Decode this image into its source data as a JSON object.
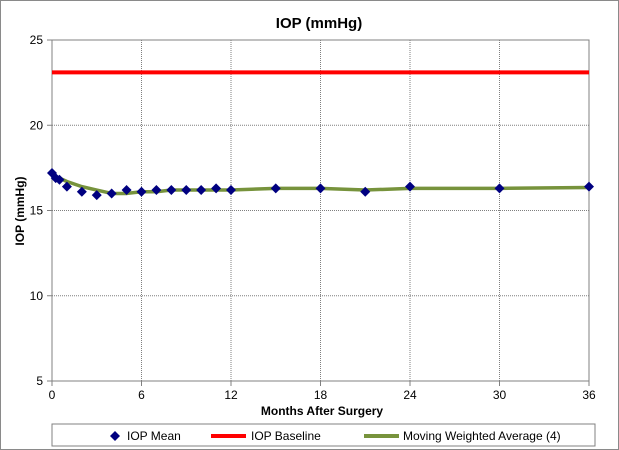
{
  "chart_data": {
    "type": "line",
    "title": "IOP (mmHg)",
    "xlabel": "Months After Surgery",
    "ylabel": "IOP (mmHg)",
    "xlim": [
      0,
      36
    ],
    "ylim": [
      5,
      25
    ],
    "x_ticks": [
      0,
      6,
      12,
      18,
      24,
      30,
      36
    ],
    "y_ticks": [
      5,
      10,
      15,
      20,
      25
    ],
    "grid": true,
    "legend_position": "bottom",
    "series": [
      {
        "name": "IOP Mean",
        "style": "markers",
        "marker": "diamond",
        "color": "#000080",
        "x": [
          0,
          0.25,
          0.5,
          1,
          2,
          3,
          4,
          5,
          6,
          7,
          8,
          9,
          10,
          11,
          12,
          15,
          18,
          21,
          24,
          30,
          36
        ],
        "y": [
          17.2,
          16.9,
          16.8,
          16.4,
          16.1,
          15.9,
          16.0,
          16.2,
          16.1,
          16.2,
          16.2,
          16.2,
          16.2,
          16.3,
          16.2,
          16.3,
          16.3,
          16.1,
          16.4,
          16.3,
          16.4
        ]
      },
      {
        "name": "IOP Baseline",
        "style": "line",
        "color": "#ff0000",
        "x": [
          0,
          36
        ],
        "y": [
          23.1,
          23.1
        ]
      },
      {
        "name": "Moving Weighted Average (4)",
        "style": "line",
        "color": "#77933c",
        "x": [
          0,
          0.25,
          0.5,
          1,
          2,
          3,
          4,
          5,
          6,
          7,
          8,
          9,
          10,
          11,
          12,
          15,
          18,
          21,
          24,
          30,
          36
        ],
        "y": [
          17.2,
          17.0,
          16.9,
          16.7,
          16.4,
          16.2,
          16.0,
          16.0,
          16.1,
          16.1,
          16.2,
          16.2,
          16.2,
          16.2,
          16.2,
          16.3,
          16.3,
          16.2,
          16.3,
          16.3,
          16.35
        ]
      }
    ]
  }
}
